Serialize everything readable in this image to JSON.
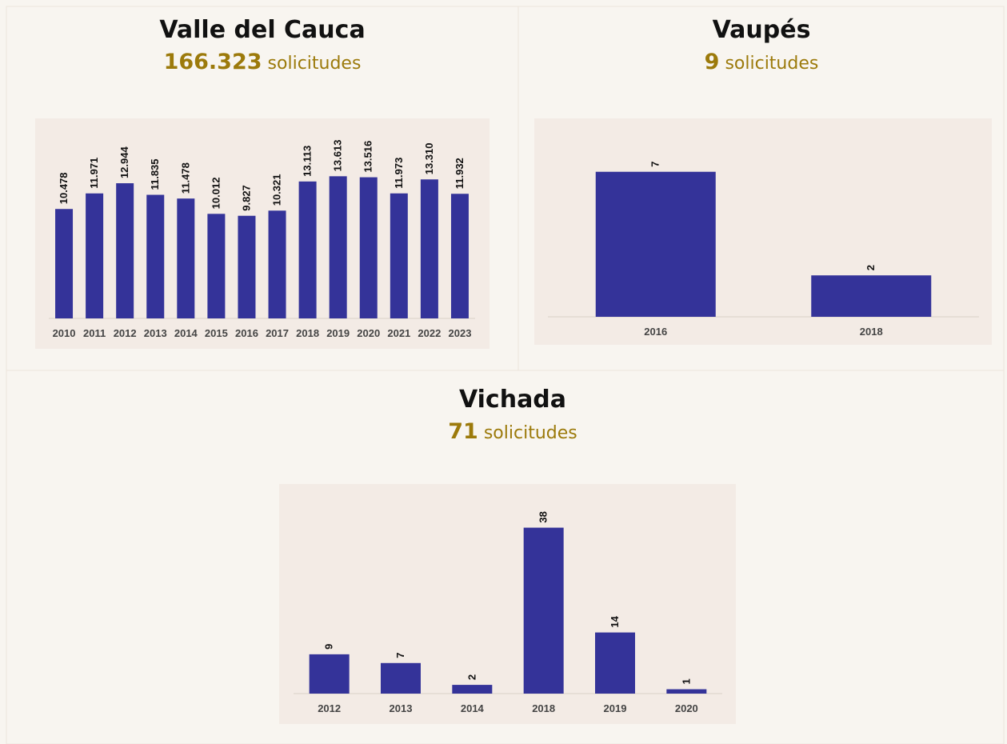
{
  "chart_data": [
    {
      "type": "bar",
      "title": "Valle del Cauca",
      "total": "166.323",
      "unit": "solicitudes",
      "categories": [
        "2010",
        "2011",
        "2012",
        "2013",
        "2014",
        "2015",
        "2016",
        "2017",
        "2018",
        "2019",
        "2020",
        "2021",
        "2022",
        "2023"
      ],
      "values": [
        10478,
        11971,
        12944,
        11835,
        11478,
        10012,
        9827,
        10321,
        13113,
        13613,
        13516,
        11973,
        13310,
        11932
      ],
      "value_labels": [
        "10.478",
        "11.971",
        "12.944",
        "11.835",
        "11.478",
        "10.012",
        "9.827",
        "10.321",
        "13.113",
        "13.613",
        "13.516",
        "11.973",
        "13.310",
        "11.932"
      ],
      "color": "#343399",
      "ylim": [
        0,
        19000
      ]
    },
    {
      "type": "bar",
      "title": "Vaupés",
      "total": "9",
      "unit": "solicitudes",
      "categories": [
        "2016",
        "2018"
      ],
      "values": [
        7,
        2
      ],
      "color": "#343399",
      "ylim": [
        0,
        9.5
      ]
    },
    {
      "type": "bar",
      "title": "Vichada",
      "total": "71",
      "unit": "solicitudes",
      "categories": [
        "2012",
        "2013",
        "2014",
        "2018",
        "2019",
        "2020"
      ],
      "values": [
        9,
        7,
        2,
        38,
        14,
        1
      ],
      "color": "#343399",
      "ylim": [
        0,
        48
      ]
    }
  ]
}
